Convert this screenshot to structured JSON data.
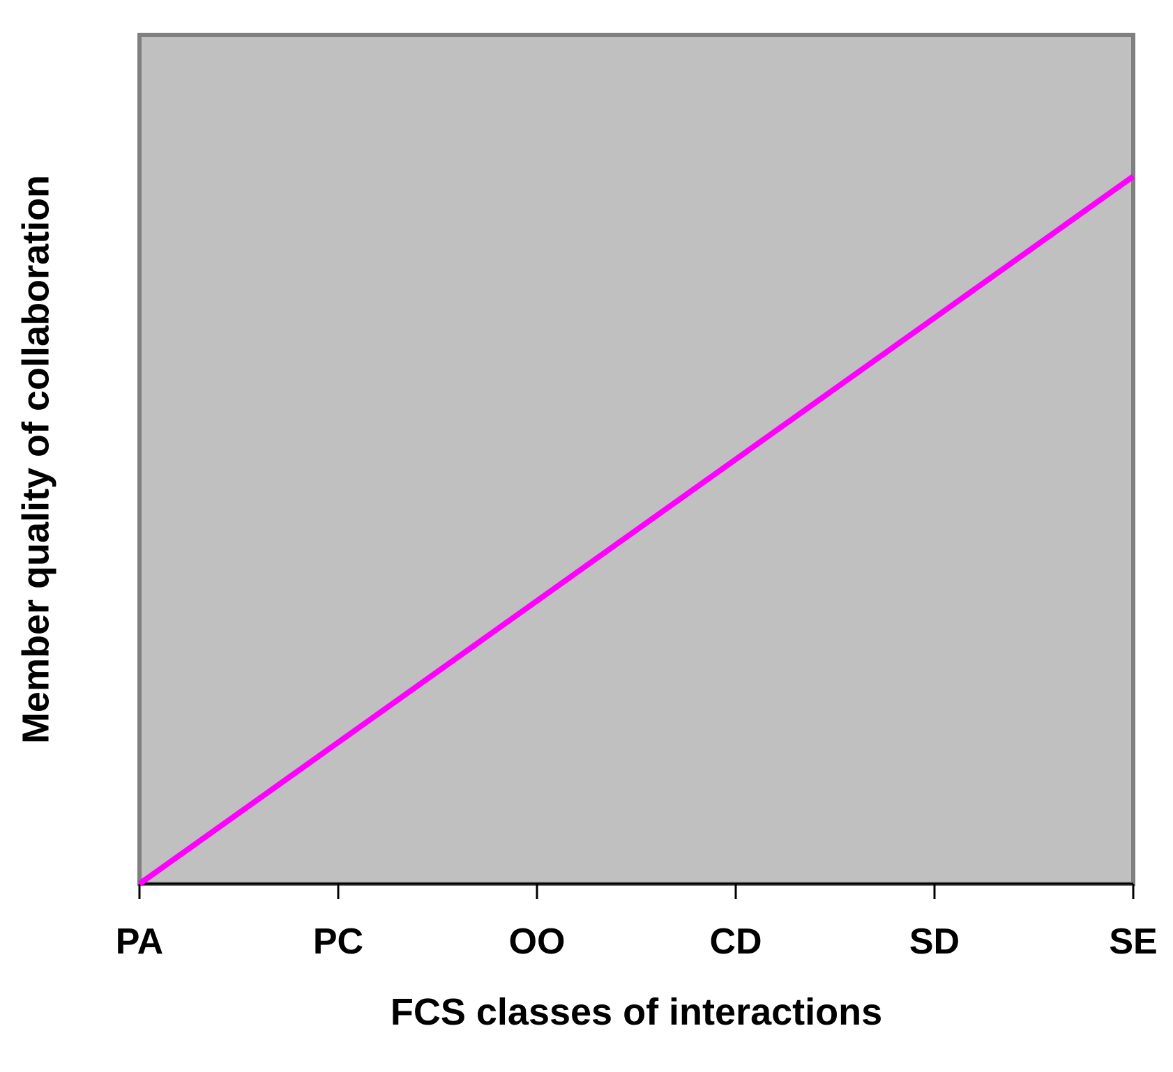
{
  "chart_data": {
    "type": "line",
    "categories": [
      "PA",
      "PC",
      "OO",
      "CD",
      "SD",
      "SE"
    ],
    "series": [
      {
        "values": [
          0,
          1,
          2,
          3,
          4,
          5
        ],
        "color": "#ff00ff"
      }
    ],
    "ylim": [
      0,
      6
    ],
    "xlabel": "FCS classes of interactions",
    "ylabel": "Member quality of collaboration",
    "title": "",
    "grid": false,
    "legend": "none",
    "plot_background": "#c0c0c0",
    "frame_color": "#808080"
  }
}
